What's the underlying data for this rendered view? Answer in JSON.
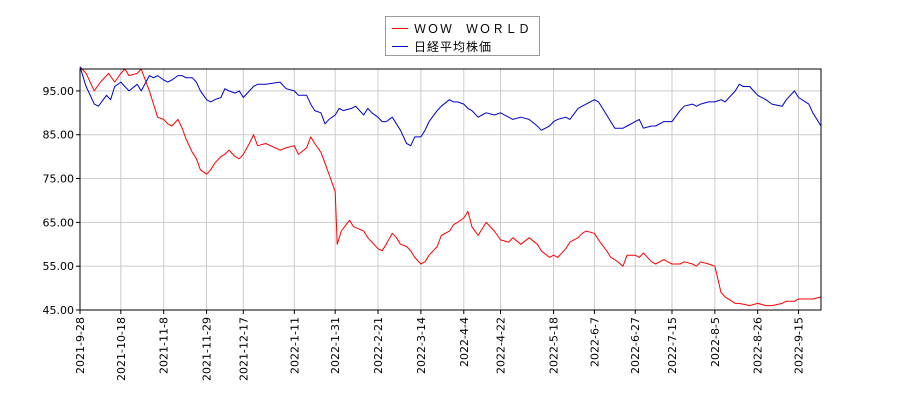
{
  "chart_data": {
    "type": "line",
    "title": "",
    "xlabel": "",
    "ylabel": "",
    "ylim": [
      45,
      100
    ],
    "yticks": [
      "95.00",
      "85.00",
      "75.00",
      "65.00",
      "55.00",
      "45.00"
    ],
    "ytick_values": [
      95,
      85,
      75,
      65,
      55,
      45
    ],
    "xticks": [
      "2021-9-28",
      "2021-10-18",
      "2021-11-8",
      "2021-11-29",
      "2021-12-17",
      "2022-1-11",
      "2022-1-31",
      "2022-2-21",
      "2022-3-14",
      "2022-4-4",
      "2022-4-22",
      "2022-5-18",
      "2022-6-7",
      "2022-6-27",
      "2022-7-15",
      "2022-8-5",
      "2022-8-26",
      "2022-9-15"
    ],
    "grid": true,
    "legend_position": "top-center",
    "series": [
      {
        "name": "ＷＯＷ　ＷＯＲＬＤ",
        "color": "#ff0000",
        "points": [
          [
            "2021-9-28",
            100.5
          ],
          [
            "2021-10-1",
            99
          ],
          [
            "2021-10-5",
            95
          ],
          [
            "2021-10-8",
            97
          ],
          [
            "2021-10-12",
            99
          ],
          [
            "2021-10-15",
            97
          ],
          [
            "2021-10-18",
            99
          ],
          [
            "2021-10-20",
            100
          ],
          [
            "2021-10-22",
            98.5
          ],
          [
            "2021-10-26",
            99
          ],
          [
            "2021-10-28",
            100
          ],
          [
            "2021-11-1",
            95
          ],
          [
            "2021-11-3",
            92
          ],
          [
            "2021-11-5",
            89
          ],
          [
            "2021-11-8",
            88.5
          ],
          [
            "2021-11-10",
            87.5
          ],
          [
            "2021-11-12",
            87
          ],
          [
            "2021-11-15",
            88.5
          ],
          [
            "2021-11-17",
            86.5
          ],
          [
            "2021-11-19",
            84
          ],
          [
            "2021-11-22",
            81
          ],
          [
            "2021-11-24",
            79.5
          ],
          [
            "2021-11-26",
            77
          ],
          [
            "2021-11-29",
            76
          ],
          [
            "2021-12-1",
            77
          ],
          [
            "2021-12-3",
            78.5
          ],
          [
            "2021-12-6",
            80
          ],
          [
            "2021-12-8",
            80.5
          ],
          [
            "2021-12-10",
            81.5
          ],
          [
            "2021-12-13",
            80
          ],
          [
            "2021-12-15",
            79.5
          ],
          [
            "2021-12-17",
            80.5
          ],
          [
            "2021-12-20",
            83
          ],
          [
            "2021-12-22",
            85
          ],
          [
            "2021-12-24",
            82.5
          ],
          [
            "2021-12-28",
            83
          ],
          [
            "2022-1-4",
            81.5
          ],
          [
            "2022-1-7",
            82
          ],
          [
            "2022-1-11",
            82.5
          ],
          [
            "2022-1-13",
            80.5
          ],
          [
            "2022-1-17",
            82
          ],
          [
            "2022-1-19",
            84.5
          ],
          [
            "2022-1-21",
            83
          ],
          [
            "2022-1-24",
            81
          ],
          [
            "2022-1-26",
            78.5
          ],
          [
            "2022-1-28",
            76
          ],
          [
            "2022-1-31",
            72
          ],
          [
            "2022-2-1",
            60
          ],
          [
            "2022-2-3",
            63
          ],
          [
            "2022-2-7",
            65.5
          ],
          [
            "2022-2-9",
            64
          ],
          [
            "2022-2-14",
            63
          ],
          [
            "2022-2-16",
            61.5
          ],
          [
            "2022-2-18",
            60.5
          ],
          [
            "2022-2-21",
            59
          ],
          [
            "2022-2-23",
            58.5
          ],
          [
            "2022-2-25",
            60
          ],
          [
            "2022-2-28",
            62.5
          ],
          [
            "2022-3-2",
            61.5
          ],
          [
            "2022-3-4",
            60
          ],
          [
            "2022-3-7",
            59.5
          ],
          [
            "2022-3-9",
            58.5
          ],
          [
            "2022-3-11",
            57
          ],
          [
            "2022-3-14",
            55.5
          ],
          [
            "2022-3-16",
            56
          ],
          [
            "2022-3-18",
            57.5
          ],
          [
            "2022-3-22",
            59.5
          ],
          [
            "2022-3-24",
            62
          ],
          [
            "2022-3-28",
            63
          ],
          [
            "2022-3-30",
            64.5
          ],
          [
            "2022-4-1",
            65
          ],
          [
            "2022-4-4",
            66
          ],
          [
            "2022-4-6",
            67.5
          ],
          [
            "2022-4-8",
            64
          ],
          [
            "2022-4-11",
            62
          ],
          [
            "2022-4-13",
            63.5
          ],
          [
            "2022-4-15",
            65
          ],
          [
            "2022-4-19",
            63
          ],
          [
            "2022-4-22",
            61
          ],
          [
            "2022-4-26",
            60.5
          ],
          [
            "2022-4-28",
            61.5
          ],
          [
            "2022-5-2",
            60
          ],
          [
            "2022-5-6",
            61.5
          ],
          [
            "2022-5-10",
            60
          ],
          [
            "2022-5-12",
            58.5
          ],
          [
            "2022-5-16",
            57
          ],
          [
            "2022-5-18",
            57.5
          ],
          [
            "2022-5-20",
            57
          ],
          [
            "2022-5-24",
            59
          ],
          [
            "2022-5-26",
            60.5
          ],
          [
            "2022-5-30",
            61.5
          ],
          [
            "2022-6-1",
            62.5
          ],
          [
            "2022-6-3",
            63
          ],
          [
            "2022-6-7",
            62.5
          ],
          [
            "2022-6-9",
            61
          ],
          [
            "2022-6-13",
            58.5
          ],
          [
            "2022-6-15",
            57
          ],
          [
            "2022-6-17",
            56.5
          ],
          [
            "2022-6-21",
            55
          ],
          [
            "2022-6-23",
            57.5
          ],
          [
            "2022-6-27",
            57.5
          ],
          [
            "2022-6-29",
            57
          ],
          [
            "2022-7-1",
            58
          ],
          [
            "2022-7-5",
            56
          ],
          [
            "2022-7-7",
            55.5
          ],
          [
            "2022-7-11",
            56.5
          ],
          [
            "2022-7-13",
            56
          ],
          [
            "2022-7-15",
            55.5
          ],
          [
            "2022-7-19",
            55.5
          ],
          [
            "2022-7-21",
            56
          ],
          [
            "2022-7-25",
            55.5
          ],
          [
            "2022-7-27",
            55
          ],
          [
            "2022-7-29",
            56
          ],
          [
            "2022-8-2",
            55.5
          ],
          [
            "2022-8-5",
            55
          ],
          [
            "2022-8-8",
            49
          ],
          [
            "2022-8-10",
            48
          ],
          [
            "2022-8-15",
            46.5
          ],
          [
            "2022-8-17",
            46.5
          ],
          [
            "2022-8-22",
            46
          ],
          [
            "2022-8-26",
            46.5
          ],
          [
            "2022-8-30",
            46
          ],
          [
            "2022-9-2",
            46
          ],
          [
            "2022-9-7",
            46.5
          ],
          [
            "2022-9-9",
            47
          ],
          [
            "2022-9-13",
            47
          ],
          [
            "2022-9-15",
            47.5
          ],
          [
            "2022-9-20",
            47.5
          ],
          [
            "2022-9-22",
            47.5
          ],
          [
            "2022-9-26",
            48
          ]
        ]
      },
      {
        "name": "日経平均株価",
        "color": "#0000cc",
        "points": [
          [
            "2021-9-28",
            100.5
          ],
          [
            "2021-10-1",
            96
          ],
          [
            "2021-10-5",
            92
          ],
          [
            "2021-10-7",
            91.5
          ],
          [
            "2021-10-11",
            94
          ],
          [
            "2021-10-13",
            93
          ],
          [
            "2021-10-15",
            96
          ],
          [
            "2021-10-18",
            97
          ],
          [
            "2021-10-20",
            96
          ],
          [
            "2021-10-22",
            95
          ],
          [
            "2021-10-26",
            96.5
          ],
          [
            "2021-10-28",
            95
          ],
          [
            "2021-11-1",
            98.5
          ],
          [
            "2021-11-3",
            98
          ],
          [
            "2021-11-5",
            98.5
          ],
          [
            "2021-11-8",
            97.5
          ],
          [
            "2021-11-10",
            97
          ],
          [
            "2021-11-12",
            97.5
          ],
          [
            "2021-11-15",
            98.5
          ],
          [
            "2021-11-17",
            98.5
          ],
          [
            "2021-11-19",
            98
          ],
          [
            "2021-11-22",
            98
          ],
          [
            "2021-11-24",
            97
          ],
          [
            "2021-11-26",
            95
          ],
          [
            "2021-11-29",
            93
          ],
          [
            "2021-12-1",
            92.5
          ],
          [
            "2021-12-3",
            93
          ],
          [
            "2021-12-6",
            93.5
          ],
          [
            "2021-12-8",
            95.5
          ],
          [
            "2021-12-10",
            95
          ],
          [
            "2021-12-13",
            94.5
          ],
          [
            "2021-12-15",
            95
          ],
          [
            "2021-12-17",
            93.5
          ],
          [
            "2021-12-20",
            95
          ],
          [
            "2021-12-22",
            96
          ],
          [
            "2021-12-24",
            96.5
          ],
          [
            "2021-12-28",
            96.5
          ],
          [
            "2022-1-4",
            97
          ],
          [
            "2022-1-7",
            95.5
          ],
          [
            "2022-1-11",
            95
          ],
          [
            "2022-1-13",
            94
          ],
          [
            "2022-1-17",
            94
          ],
          [
            "2022-1-19",
            92
          ],
          [
            "2022-1-21",
            90.5
          ],
          [
            "2022-1-24",
            90
          ],
          [
            "2022-1-26",
            87.5
          ],
          [
            "2022-1-28",
            88.5
          ],
          [
            "2022-1-31",
            89.5
          ],
          [
            "2022-2-2",
            91
          ],
          [
            "2022-2-4",
            90.5
          ],
          [
            "2022-2-8",
            91
          ],
          [
            "2022-2-10",
            91.5
          ],
          [
            "2022-2-14",
            89.5
          ],
          [
            "2022-2-16",
            91
          ],
          [
            "2022-2-18",
            90
          ],
          [
            "2022-2-21",
            89
          ],
          [
            "2022-2-23",
            88
          ],
          [
            "2022-2-25",
            88
          ],
          [
            "2022-2-28",
            89
          ],
          [
            "2022-3-2",
            87.5
          ],
          [
            "2022-3-4",
            86
          ],
          [
            "2022-3-7",
            83
          ],
          [
            "2022-3-9",
            82.5
          ],
          [
            "2022-3-11",
            84.5
          ],
          [
            "2022-3-14",
            84.5
          ],
          [
            "2022-3-16",
            86
          ],
          [
            "2022-3-18",
            88
          ],
          [
            "2022-3-22",
            90.5
          ],
          [
            "2022-3-24",
            91.5
          ],
          [
            "2022-3-28",
            93
          ],
          [
            "2022-3-30",
            92.5
          ],
          [
            "2022-4-1",
            92.5
          ],
          [
            "2022-4-4",
            92
          ],
          [
            "2022-4-6",
            91
          ],
          [
            "2022-4-8",
            90.5
          ],
          [
            "2022-4-11",
            89
          ],
          [
            "2022-4-13",
            89.5
          ],
          [
            "2022-4-15",
            90
          ],
          [
            "2022-4-19",
            89.5
          ],
          [
            "2022-4-22",
            90
          ],
          [
            "2022-4-26",
            89
          ],
          [
            "2022-4-28",
            88.5
          ],
          [
            "2022-5-2",
            89
          ],
          [
            "2022-5-6",
            88.5
          ],
          [
            "2022-5-10",
            87
          ],
          [
            "2022-5-12",
            86
          ],
          [
            "2022-5-16",
            87
          ],
          [
            "2022-5-18",
            88
          ],
          [
            "2022-5-20",
            88.5
          ],
          [
            "2022-5-24",
            89
          ],
          [
            "2022-5-26",
            88.5
          ],
          [
            "2022-5-30",
            91
          ],
          [
            "2022-6-1",
            91.5
          ],
          [
            "2022-6-3",
            92
          ],
          [
            "2022-6-7",
            93
          ],
          [
            "2022-6-9",
            92.5
          ],
          [
            "2022-6-13",
            89.5
          ],
          [
            "2022-6-15",
            88
          ],
          [
            "2022-6-17",
            86.5
          ],
          [
            "2022-6-21",
            86.5
          ],
          [
            "2022-6-23",
            87
          ],
          [
            "2022-6-27",
            88
          ],
          [
            "2022-6-29",
            88.5
          ],
          [
            "2022-7-1",
            86.5
          ],
          [
            "2022-7-5",
            87
          ],
          [
            "2022-7-7",
            87
          ],
          [
            "2022-7-11",
            88
          ],
          [
            "2022-7-13",
            88
          ],
          [
            "2022-7-15",
            88
          ],
          [
            "2022-7-19",
            90.5
          ],
          [
            "2022-7-21",
            91.5
          ],
          [
            "2022-7-25",
            92
          ],
          [
            "2022-7-27",
            91.5
          ],
          [
            "2022-7-29",
            92
          ],
          [
            "2022-8-2",
            92.5
          ],
          [
            "2022-8-5",
            92.5
          ],
          [
            "2022-8-8",
            93
          ],
          [
            "2022-8-10",
            92.5
          ],
          [
            "2022-8-15",
            95
          ],
          [
            "2022-8-17",
            96.5
          ],
          [
            "2022-8-19",
            96
          ],
          [
            "2022-8-22",
            96
          ],
          [
            "2022-8-26",
            94
          ],
          [
            "2022-8-30",
            93
          ],
          [
            "2022-9-2",
            92
          ],
          [
            "2022-9-7",
            91.5
          ],
          [
            "2022-9-9",
            93
          ],
          [
            "2022-9-13",
            95
          ],
          [
            "2022-9-15",
            93.5
          ],
          [
            "2022-9-20",
            92
          ],
          [
            "2022-9-22",
            90
          ],
          [
            "2022-9-26",
            87
          ]
        ]
      }
    ]
  }
}
